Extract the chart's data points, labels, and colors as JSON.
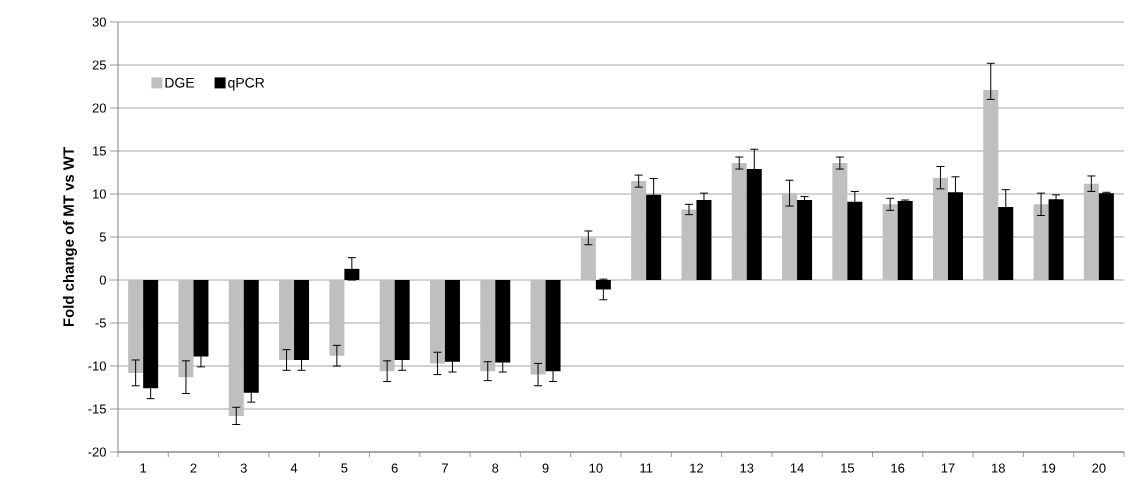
{
  "chart_data": {
    "type": "bar",
    "ylabel": "Fold change of MT vs WT",
    "categories": [
      "1",
      "2",
      "3",
      "4",
      "5",
      "6",
      "7",
      "8",
      "9",
      "10",
      "11",
      "12",
      "13",
      "14",
      "15",
      "16",
      "17",
      "18",
      "19",
      "20"
    ],
    "series": [
      {
        "name": "DGE",
        "color": "#bfbfbf",
        "values": [
          -10.8,
          -11.3,
          -15.8,
          -9.3,
          -8.8,
          -10.6,
          -9.7,
          -10.6,
          -11.0,
          4.9,
          11.5,
          8.2,
          13.6,
          10.1,
          13.6,
          8.8,
          11.9,
          22.1,
          8.8,
          11.2
        ],
        "errors": [
          1.5,
          1.9,
          1.0,
          1.2,
          1.2,
          1.2,
          1.3,
          1.1,
          1.3,
          0.8,
          0.7,
          0.6,
          0.7,
          1.5,
          0.7,
          0.7,
          1.3,
          [
            21.0,
            25.2
          ],
          1.3,
          0.9
        ]
      },
      {
        "name": "qPCR",
        "color": "#000000",
        "values": [
          -12.6,
          -8.9,
          -13.1,
          -9.3,
          1.3,
          -9.3,
          -9.5,
          -9.6,
          -10.6,
          -1.1,
          9.9,
          9.3,
          12.9,
          9.3,
          9.1,
          9.2,
          10.2,
          8.5,
          9.4,
          10.1
        ],
        "errors": [
          1.2,
          1.2,
          1.1,
          1.2,
          1.3,
          1.2,
          1.2,
          1.1,
          1.2,
          1.2,
          1.9,
          0.8,
          2.3,
          0.4,
          1.2,
          0.1,
          1.8,
          2.0,
          0.5,
          0.1
        ]
      }
    ],
    "ylim": [
      -20,
      30
    ],
    "yticks": [
      -20,
      -15,
      -10,
      -5,
      0,
      5,
      10,
      15,
      20,
      25,
      30
    ],
    "grid": "y",
    "legend": "top left"
  }
}
